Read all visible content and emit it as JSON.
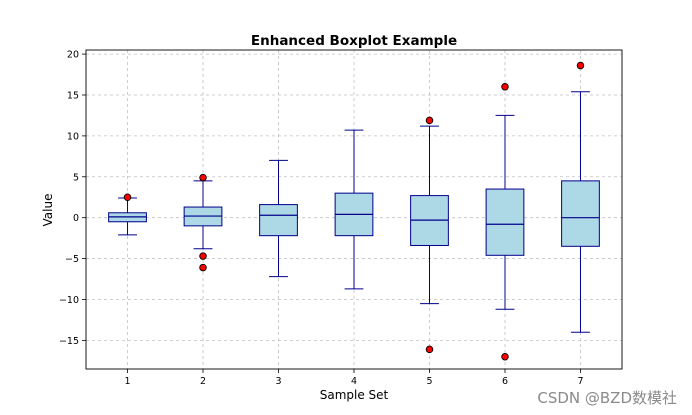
{
  "chart_data": {
    "type": "boxplot",
    "title": "Enhanced Boxplot Example",
    "xlabel": "Sample Set",
    "ylabel": "Value",
    "ylim": [
      -18.5,
      20.5
    ],
    "yticks": [
      -15,
      -10,
      -5,
      0,
      5,
      10,
      15,
      20
    ],
    "grid": true,
    "colors": {
      "box_fill": "#add8e6",
      "box_edge": "#00008b",
      "median": "#00008b",
      "whisker": "#00008b",
      "outlier_fill": "#ff0000",
      "outlier_edge": "#000000",
      "grid": "#c0c0c0"
    },
    "categories": [
      "1",
      "2",
      "3",
      "4",
      "5",
      "6",
      "7"
    ],
    "boxes": [
      {
        "label": "1",
        "whislo": -2.1,
        "q1": -0.5,
        "med": 0.1,
        "q3": 0.6,
        "whishi": 2.4,
        "fliers": [
          2.5
        ]
      },
      {
        "label": "2",
        "whislo": -3.8,
        "q1": -1.0,
        "med": 0.2,
        "q3": 1.3,
        "whishi": 4.5,
        "fliers": [
          4.9,
          -4.7,
          -6.1
        ]
      },
      {
        "label": "3",
        "whislo": -7.2,
        "q1": -2.2,
        "med": 0.3,
        "q3": 1.6,
        "whishi": 7.0,
        "fliers": []
      },
      {
        "label": "4",
        "whislo": -8.7,
        "q1": -2.2,
        "med": 0.4,
        "q3": 3.0,
        "whishi": 10.7,
        "fliers": []
      },
      {
        "label": "5",
        "whislo": -10.5,
        "q1": -3.4,
        "med": -0.3,
        "q3": 2.7,
        "whishi": 11.2,
        "fliers": [
          11.9,
          -16.1
        ]
      },
      {
        "label": "6",
        "whislo": -11.2,
        "q1": -4.6,
        "med": -0.8,
        "q3": 3.5,
        "whishi": 12.5,
        "fliers": [
          16.0,
          -17.0
        ]
      },
      {
        "label": "7",
        "whislo": -14.0,
        "q1": -3.5,
        "med": 0.0,
        "q3": 4.5,
        "whishi": 15.4,
        "fliers": [
          18.6
        ]
      }
    ]
  },
  "watermark": "CSDN @BZD数模社"
}
